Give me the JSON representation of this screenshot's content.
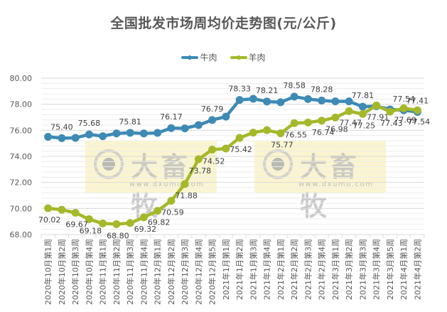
{
  "chart_data": {
    "type": "line",
    "title": "全国批发市场周均价走势图(元/公斤)",
    "xlabel": "",
    "ylabel": "",
    "ylim": [
      68,
      80
    ],
    "yticks": [
      "68.00",
      "70.00",
      "72.00",
      "74.00",
      "76.00",
      "78.00",
      "80.00"
    ],
    "grid": true,
    "legend_position": "top",
    "categories": [
      "2020年10月第1周",
      "2020年10月第2周",
      "2020年10月第3周",
      "2020年10月第4周",
      "2020年11月第1周",
      "2020年11月第2周",
      "2020年11月第3周",
      "2020年11月第4周",
      "2020年12月第1周",
      "2020年12月第2周",
      "2020年12月第3周",
      "2020年12月第4周",
      "2020年12月第5周",
      "2021年1月第1周",
      "2021年1月第2周",
      "2021年1月第3周",
      "2021年1月第4周",
      "2021年2月第1周",
      "2021年2月第2周",
      "2021年2月第3周",
      "2021年2月第4周",
      "2021年3月第1周",
      "2021年3月第2周",
      "2021年3月第3周",
      "2021年3月第4周",
      "2021年3月第5周",
      "2021年4月第1周",
      "2021年4月第2周"
    ],
    "series": [
      {
        "name": "牛肉",
        "color": "#3d8ab5",
        "values": [
          75.5,
          75.4,
          75.42,
          75.68,
          75.55,
          75.76,
          75.81,
          75.76,
          75.8,
          76.17,
          76.15,
          76.4,
          76.79,
          77.05,
          78.33,
          78.42,
          78.21,
          78.15,
          78.58,
          78.4,
          78.28,
          78.22,
          78.22,
          77.81,
          77.85,
          77.6,
          77.54,
          77.41
        ],
        "labels": [
          {
            "index": 1,
            "text": "75.40",
            "pos": "above"
          },
          {
            "index": 3,
            "text": "75.68",
            "pos": "above"
          },
          {
            "index": 6,
            "text": "75.81",
            "pos": "above"
          },
          {
            "index": 9,
            "text": "76.17",
            "pos": "above"
          },
          {
            "index": 12,
            "text": "76.79",
            "pos": "above"
          },
          {
            "index": 14,
            "text": "78.33",
            "pos": "above"
          },
          {
            "index": 16,
            "text": "78.21",
            "pos": "above"
          },
          {
            "index": 18,
            "text": "78.58",
            "pos": "above"
          },
          {
            "index": 20,
            "text": "78.28",
            "pos": "above"
          },
          {
            "index": 23,
            "text": "77.81",
            "pos": "above"
          },
          {
            "index": 26,
            "text": "77.54",
            "pos": "above"
          },
          {
            "index": 27,
            "text": "77.41",
            "pos": "above"
          }
        ]
      },
      {
        "name": "羊肉",
        "color": "#a5b82a",
        "values": [
          70.02,
          69.9,
          69.67,
          69.18,
          68.85,
          68.8,
          68.88,
          69.32,
          69.82,
          70.59,
          71.88,
          73.78,
          74.52,
          74.6,
          75.42,
          75.82,
          76.01,
          75.77,
          76.55,
          76.6,
          76.74,
          76.98,
          77.47,
          77.25,
          77.91,
          77.43,
          77.69,
          77.54
        ],
        "labels": [
          {
            "index": 0,
            "text": "70.02",
            "pos": "below"
          },
          {
            "index": 2,
            "text": "69.67",
            "pos": "below"
          },
          {
            "index": 3,
            "text": "69.18",
            "pos": "below"
          },
          {
            "index": 5,
            "text": "68.80",
            "pos": "below"
          },
          {
            "index": 7,
            "text": "69.32",
            "pos": "below"
          },
          {
            "index": 8,
            "text": "69.82",
            "pos": "below"
          },
          {
            "index": 9,
            "text": "70.59",
            "pos": "below"
          },
          {
            "index": 10,
            "text": "71.88",
            "pos": "below"
          },
          {
            "index": 11,
            "text": "73.78",
            "pos": "below"
          },
          {
            "index": 12,
            "text": "74.52",
            "pos": "below"
          },
          {
            "index": 14,
            "text": "75.42",
            "pos": "below"
          },
          {
            "index": 17,
            "text": "75.77",
            "pos": "below"
          },
          {
            "index": 18,
            "text": "76.55",
            "pos": "below"
          },
          {
            "index": 20,
            "text": "76.74",
            "pos": "below"
          },
          {
            "index": 21,
            "text": "76.98",
            "pos": "below"
          },
          {
            "index": 22,
            "text": "77.47",
            "pos": "below"
          },
          {
            "index": 23,
            "text": "77.25",
            "pos": "below"
          },
          {
            "index": 24,
            "text": "77.91",
            "pos": "below"
          },
          {
            "index": 25,
            "text": "77.43",
            "pos": "below"
          },
          {
            "index": 26,
            "text": "77.69",
            "pos": "below"
          },
          {
            "index": 27,
            "text": "77.54",
            "pos": "below"
          }
        ]
      }
    ]
  },
  "header": {
    "title": "全国批发市场周均价走势图(元/公斤)"
  },
  "legend": {
    "items": [
      {
        "label": "牛肉",
        "color": "#3d8ab5"
      },
      {
        "label": "羊肉",
        "color": "#a5b82a"
      }
    ]
  },
  "watermark": {
    "brand": "大畜牧",
    "url": "www.dxumu.com"
  }
}
